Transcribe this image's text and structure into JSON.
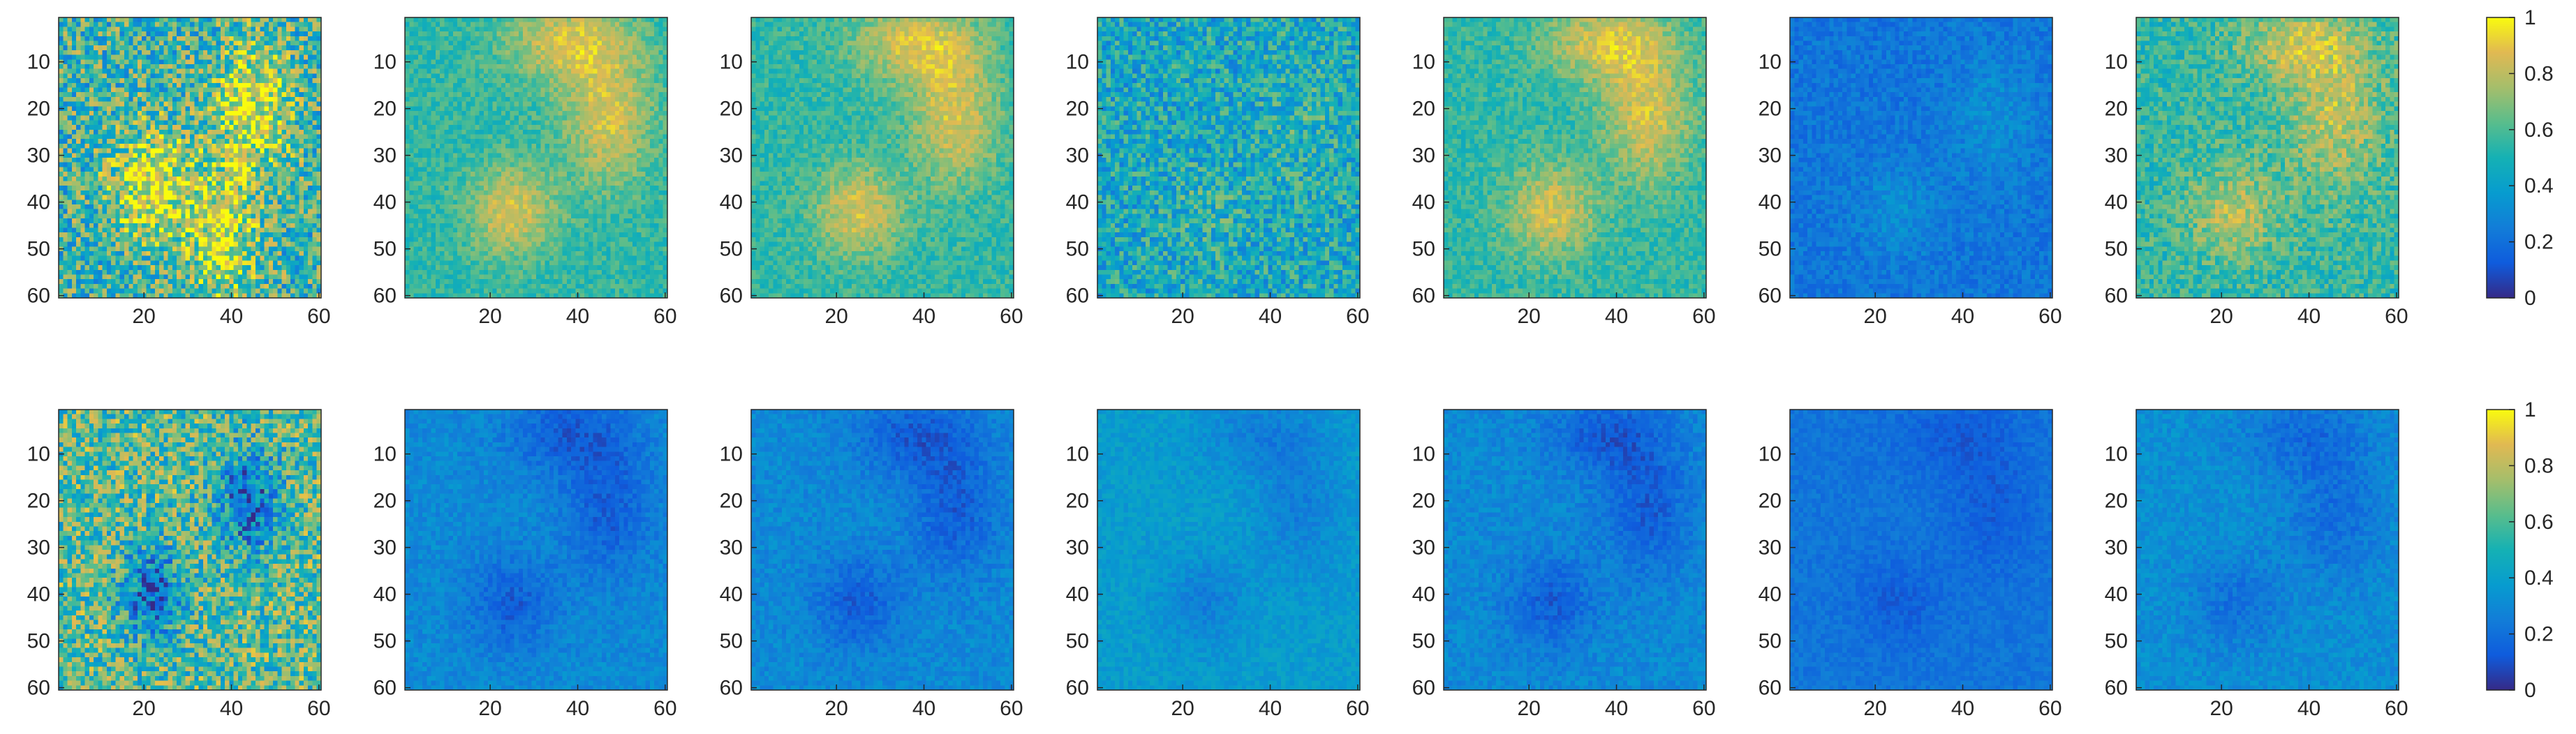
{
  "chart_data": {
    "type": "heatmap",
    "colormap": "parula",
    "grid": false,
    "rows": [
      {
        "colorbar": {
          "range": [
            0,
            1
          ],
          "ticks": [
            "0",
            "0.2",
            "0.4",
            "0.6",
            "0.8",
            "1"
          ]
        },
        "panels": [
          {
            "xlim": [
              1,
              60
            ],
            "ylim": [
              1,
              60
            ],
            "xticks": [
              "20",
              "40",
              "60"
            ],
            "yticks": [
              "10",
              "20",
              "30",
              "40",
              "50",
              "60"
            ],
            "base": 0.55,
            "blob_strength": 0.35,
            "noise": 0.32,
            "blobs": [
              [
                22,
                37,
                7,
                9
              ],
              [
                45,
                20,
                6,
                10
              ],
              [
                38,
                48,
                5,
                10
              ]
            ]
          },
          {
            "xlim": [
              1,
              60
            ],
            "ylim": [
              1,
              60
            ],
            "xticks": [
              "20",
              "40",
              "60"
            ],
            "yticks": [
              "10",
              "20",
              "30",
              "40",
              "50",
              "60"
            ],
            "base": 0.55,
            "blob_strength": 0.3,
            "noise": 0.1,
            "blobs": [
              [
                25,
                42,
                7,
                7
              ],
              [
                47,
                22,
                7,
                10
              ],
              [
                38,
                6,
                10,
                6
              ]
            ]
          },
          {
            "xlim": [
              1,
              60
            ],
            "ylim": [
              1,
              60
            ],
            "xticks": [
              "20",
              "40",
              "60"
            ],
            "yticks": [
              "10",
              "20",
              "30",
              "40",
              "50",
              "60"
            ],
            "base": 0.55,
            "blob_strength": 0.3,
            "noise": 0.1,
            "blobs": [
              [
                25,
                42,
                7,
                7
              ],
              [
                47,
                22,
                7,
                10
              ],
              [
                38,
                6,
                10,
                6
              ]
            ]
          },
          {
            "xlim": [
              1,
              60
            ],
            "ylim": [
              1,
              60
            ],
            "xticks": [
              "20",
              "40",
              "60"
            ],
            "yticks": [
              "10",
              "20",
              "30",
              "40",
              "50",
              "60"
            ],
            "base": 0.45,
            "blob_strength": 0.08,
            "noise": 0.22,
            "blobs": [
              [
                25,
                42,
                7,
                7
              ],
              [
                47,
                22,
                7,
                10
              ]
            ]
          },
          {
            "xlim": [
              1,
              60
            ],
            "ylim": [
              1,
              60
            ],
            "xticks": [
              "20",
              "40",
              "60"
            ],
            "yticks": [
              "10",
              "20",
              "30",
              "40",
              "50",
              "60"
            ],
            "base": 0.55,
            "blob_strength": 0.3,
            "noise": 0.1,
            "blobs": [
              [
                25,
                42,
                7,
                7
              ],
              [
                47,
                22,
                7,
                10
              ],
              [
                38,
                6,
                10,
                6
              ]
            ]
          },
          {
            "xlim": [
              1,
              60
            ],
            "ylim": [
              1,
              60
            ],
            "xticks": [
              "20",
              "40",
              "60"
            ],
            "yticks": [
              "10",
              "20",
              "30",
              "40",
              "50",
              "60"
            ],
            "base": 0.22,
            "blob_strength": 0.1,
            "noise": 0.08,
            "blobs": [
              [
                25,
                42,
                7,
                7
              ],
              [
                47,
                22,
                7,
                10
              ]
            ]
          },
          {
            "xlim": [
              1,
              60
            ],
            "ylim": [
              1,
              60
            ],
            "xticks": [
              "20",
              "40",
              "60"
            ],
            "yticks": [
              "10",
              "20",
              "30",
              "40",
              "50",
              "60"
            ],
            "base": 0.55,
            "blob_strength": 0.25,
            "noise": 0.14,
            "blobs": [
              [
                23,
                42,
                7,
                7
              ],
              [
                46,
                22,
                8,
                11
              ],
              [
                38,
                6,
                10,
                6
              ]
            ]
          }
        ]
      },
      {
        "colorbar": {
          "range": [
            0,
            1
          ],
          "ticks": [
            "0",
            "0.2",
            "0.4",
            "0.6",
            "0.8",
            "1"
          ]
        },
        "panels": [
          {
            "xlim": [
              1,
              60
            ],
            "ylim": [
              1,
              60
            ],
            "xticks": [
              "20",
              "40",
              "60"
            ],
            "yticks": [
              "10",
              "20",
              "30",
              "40",
              "50",
              "60"
            ],
            "base": 0.62,
            "blob_strength": -0.45,
            "noise": 0.3,
            "blobs": [
              [
                22,
                40,
                5,
                7
              ],
              [
                44,
                20,
                5,
                8
              ]
            ]
          },
          {
            "xlim": [
              1,
              60
            ],
            "ylim": [
              1,
              60
            ],
            "xticks": [
              "20",
              "40",
              "60"
            ],
            "yticks": [
              "10",
              "20",
              "30",
              "40",
              "50",
              "60"
            ],
            "base": 0.3,
            "blob_strength": -0.16,
            "noise": 0.07,
            "blobs": [
              [
                25,
                42,
                7,
                7
              ],
              [
                47,
                22,
                7,
                10
              ],
              [
                38,
                6,
                10,
                6
              ]
            ]
          },
          {
            "xlim": [
              1,
              60
            ],
            "ylim": [
              1,
              60
            ],
            "xticks": [
              "20",
              "40",
              "60"
            ],
            "yticks": [
              "10",
              "20",
              "30",
              "40",
              "50",
              "60"
            ],
            "base": 0.3,
            "blob_strength": -0.16,
            "noise": 0.07,
            "blobs": [
              [
                25,
                42,
                7,
                7
              ],
              [
                47,
                22,
                7,
                10
              ],
              [
                38,
                6,
                10,
                6
              ]
            ]
          },
          {
            "xlim": [
              1,
              60
            ],
            "ylim": [
              1,
              60
            ],
            "xticks": [
              "20",
              "40",
              "60"
            ],
            "yticks": [
              "10",
              "20",
              "30",
              "40",
              "50",
              "60"
            ],
            "base": 0.38,
            "blob_strength": -0.12,
            "noise": 0.06,
            "blobs": [
              [
                25,
                42,
                7,
                7
              ],
              [
                47,
                22,
                7,
                10
              ],
              [
                38,
                6,
                10,
                6
              ]
            ]
          },
          {
            "xlim": [
              1,
              60
            ],
            "ylim": [
              1,
              60
            ],
            "xticks": [
              "20",
              "40",
              "60"
            ],
            "yticks": [
              "10",
              "20",
              "30",
              "40",
              "50",
              "60"
            ],
            "base": 0.3,
            "blob_strength": -0.16,
            "noise": 0.07,
            "blobs": [
              [
                25,
                42,
                7,
                7
              ],
              [
                47,
                22,
                7,
                10
              ],
              [
                38,
                6,
                10,
                6
              ]
            ]
          },
          {
            "xlim": [
              1,
              60
            ],
            "ylim": [
              1,
              60
            ],
            "xticks": [
              "20",
              "40",
              "60"
            ],
            "yticks": [
              "10",
              "20",
              "30",
              "40",
              "50",
              "60"
            ],
            "base": 0.22,
            "blob_strength": -0.08,
            "noise": 0.05,
            "blobs": [
              [
                25,
                42,
                7,
                7
              ],
              [
                47,
                22,
                7,
                10
              ],
              [
                38,
                6,
                10,
                6
              ]
            ]
          },
          {
            "xlim": [
              1,
              60
            ],
            "ylim": [
              1,
              60
            ],
            "xticks": [
              "20",
              "40",
              "60"
            ],
            "yticks": [
              "10",
              "20",
              "30",
              "40",
              "50",
              "60"
            ],
            "base": 0.32,
            "blob_strength": -0.12,
            "noise": 0.07,
            "blobs": [
              [
                23,
                42,
                7,
                7
              ],
              [
                46,
                22,
                8,
                11
              ],
              [
                38,
                6,
                10,
                6
              ]
            ]
          }
        ]
      }
    ]
  },
  "colors": {
    "axis": "#262626",
    "background": "#ffffff"
  }
}
